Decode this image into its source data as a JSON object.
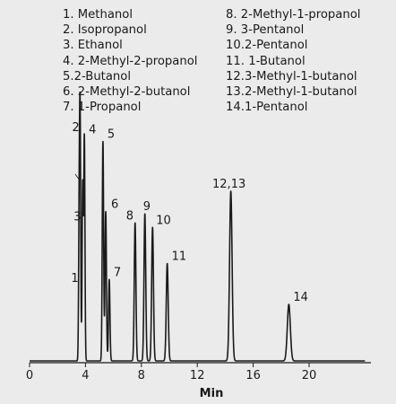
{
  "legend": [
    {
      "num": "1.",
      "name": "Methanol"
    },
    {
      "num": "2.",
      "name": "Isopropanol"
    },
    {
      "num": "3.",
      "name": "Ethanol"
    },
    {
      "num": "4.",
      "name": "2-Methyl-2-propanol"
    },
    {
      "num": "5.",
      "name": "2-Butanol"
    },
    {
      "num": "6.",
      "name": "2-Methyl-2-butanol"
    },
    {
      "num": "7.",
      "name": "1-Propanol"
    },
    {
      "num": "8.",
      "name": "2-Methyl-1-propanol"
    },
    {
      "num": "9.",
      "name": "3-Pentanol"
    },
    {
      "num": "10.",
      "name": "2-Pentanol"
    },
    {
      "num": "11.",
      "name": "1-Butanol"
    },
    {
      "num": "12.",
      "name": "3-Methyl-1-butanol"
    },
    {
      "num": "13.",
      "name": "2-Methyl-1-butanol"
    },
    {
      "num": "14.",
      "name": "1-Pentanol"
    }
  ],
  "chart_data": {
    "type": "line",
    "xlabel": "Min",
    "ylabel": "",
    "xlim": [
      0,
      24
    ],
    "x_ticks": [
      0,
      4,
      8,
      12,
      16,
      20
    ],
    "grid": false,
    "line_color": "#1a1a1a",
    "peaks": [
      {
        "label": "1",
        "rt": 3.55,
        "height": 0.62
      },
      {
        "label": "2",
        "rt": 3.62,
        "height": 1.0
      },
      {
        "label": "3",
        "rt": 3.8,
        "height": 0.78
      },
      {
        "label": "4",
        "rt": 3.92,
        "height": 0.99
      },
      {
        "label": "5",
        "rt": 5.25,
        "height": 0.97
      },
      {
        "label": "6",
        "rt": 5.45,
        "height": 0.66
      },
      {
        "label": "7",
        "rt": 5.7,
        "height": 0.36
      },
      {
        "label": "8",
        "rt": 7.55,
        "height": 0.61
      },
      {
        "label": "9",
        "rt": 8.25,
        "height": 0.65
      },
      {
        "label": "10",
        "rt": 8.8,
        "height": 0.59
      },
      {
        "label": "11",
        "rt": 9.85,
        "height": 0.43
      },
      {
        "label": "12,13",
        "rt": 14.4,
        "height": 0.75
      },
      {
        "label": "14",
        "rt": 18.55,
        "height": 0.25
      }
    ]
  }
}
